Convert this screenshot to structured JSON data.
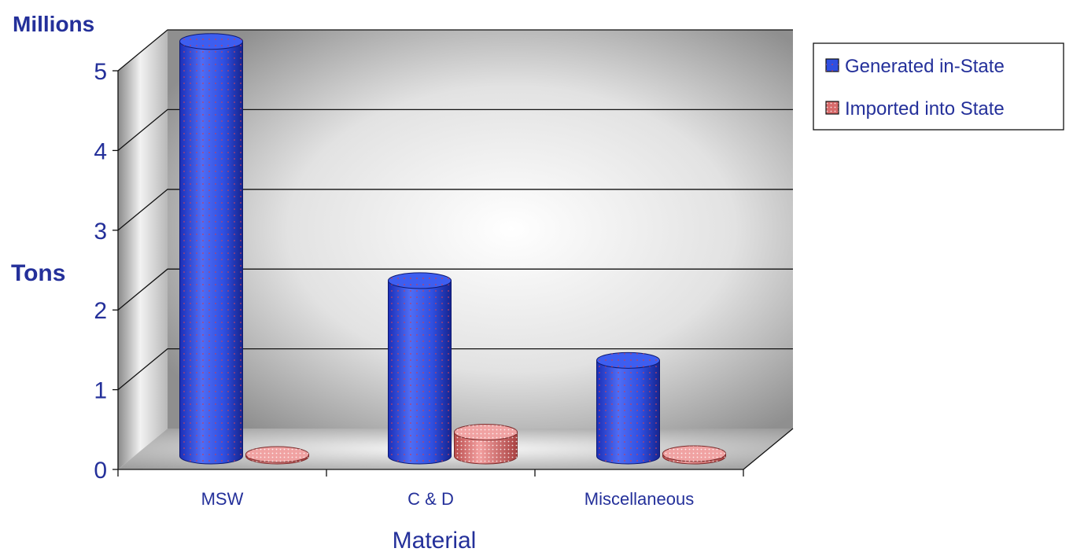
{
  "chart_data": {
    "type": "bar",
    "title": "",
    "units_label": "Millions",
    "ylabel": "Tons",
    "xlabel": "Material",
    "categories": [
      "MSW",
      "C & D",
      "Miscellaneous"
    ],
    "series": [
      {
        "name": "Generated in-State",
        "values": [
          5.2,
          2.2,
          1.2
        ],
        "color": "#2f4fe0"
      },
      {
        "name": "Imported into State",
        "values": [
          0.02,
          0.3,
          0.03
        ],
        "color": "#d86a6a"
      }
    ],
    "ylim": [
      0,
      5
    ],
    "yticks": [
      0,
      1,
      2,
      3,
      4,
      5
    ],
    "grid": true,
    "legend_position": "top-right",
    "style": "3d-cylinder"
  }
}
